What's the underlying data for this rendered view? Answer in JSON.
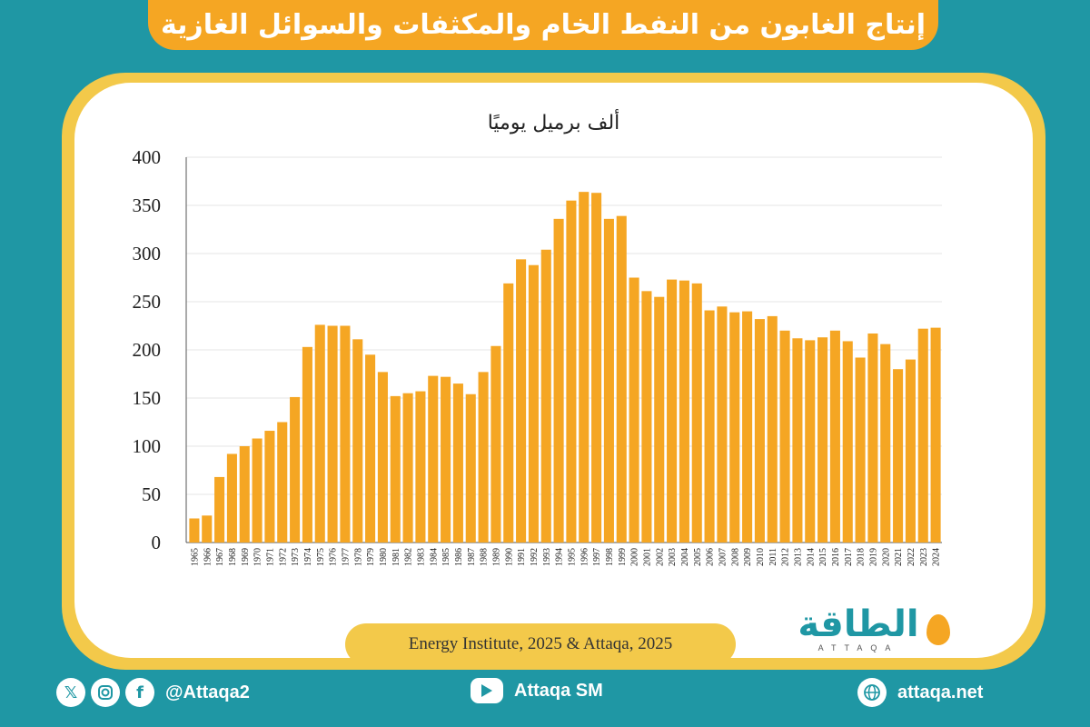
{
  "header": {
    "title": "إنتاج الغابون من النفط الخام والمكثفات والسوائل الغازية"
  },
  "chart_data": {
    "type": "bar",
    "ylabel": "ألف برميل يوميًا",
    "ylim": [
      0,
      400
    ],
    "yticks": [
      0,
      50,
      100,
      150,
      200,
      250,
      300,
      350,
      400
    ],
    "grid": true,
    "bar_color": "#f5a623",
    "categories": [
      "1965",
      "1966",
      "1967",
      "1968",
      "1969",
      "1970",
      "1971",
      "1972",
      "1973",
      "1974",
      "1975",
      "1976",
      "1977",
      "1978",
      "1979",
      "1980",
      "1981",
      "1982",
      "1983",
      "1984",
      "1985",
      "1986",
      "1987",
      "1988",
      "1989",
      "1990",
      "1991",
      "1992",
      "1993",
      "1994",
      "1995",
      "1996",
      "1997",
      "1998",
      "1999",
      "2000",
      "2001",
      "2002",
      "2003",
      "2004",
      "2005",
      "2006",
      "2007",
      "2008",
      "2009",
      "2010",
      "2011",
      "2012",
      "2013",
      "2014",
      "2015",
      "2016",
      "2017",
      "2018",
      "2019",
      "2020",
      "2021",
      "2022",
      "2023",
      "2024"
    ],
    "values": [
      25,
      28,
      68,
      92,
      100,
      108,
      116,
      125,
      151,
      203,
      226,
      225,
      225,
      211,
      195,
      177,
      152,
      155,
      157,
      173,
      172,
      165,
      154,
      177,
      204,
      269,
      294,
      288,
      304,
      336,
      355,
      364,
      363,
      336,
      339,
      275,
      261,
      255,
      273,
      272,
      269,
      241,
      245,
      239,
      240,
      232,
      235,
      220,
      212,
      210,
      213,
      220,
      209,
      192,
      217,
      206,
      180,
      190,
      222,
      223
    ]
  },
  "source": {
    "text": "Energy Institute, 2025 & Attaqa, 2025"
  },
  "logo": {
    "arabic": "الطاقة",
    "latin": "ATTAQA"
  },
  "footer": {
    "handle": "@Attaqa2",
    "channel": "Attaqa SM",
    "website": "attaqa.net",
    "icons": [
      "x-icon",
      "instagram-icon",
      "facebook-icon",
      "youtube-icon",
      "globe-icon"
    ]
  },
  "colors": {
    "background": "#1f97a4",
    "accent": "#f5a623",
    "frame": "#f3c94a"
  }
}
